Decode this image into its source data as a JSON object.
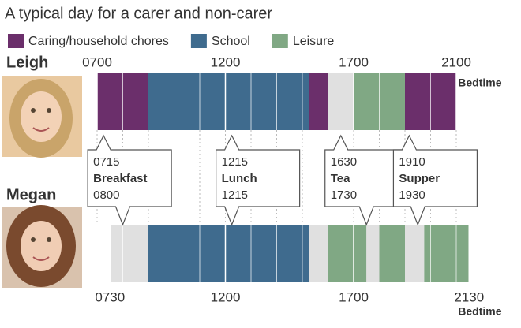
{
  "chart_data": {
    "type": "timeline",
    "title": "A typical day for a carer and non-carer",
    "legend": [
      {
        "name": "Caring/household chores",
        "color": "#6b2f6b"
      },
      {
        "name": "School",
        "color": "#3f6b8e"
      },
      {
        "name": "Leisure",
        "color": "#80a884"
      }
    ],
    "other_color": "#e0e0e0",
    "xlim": [
      7,
      21.5
    ],
    "rows": [
      {
        "name": "Leigh",
        "annotation": "Bedtime",
        "xticks": [
          {
            "value": 7,
            "label": "0700"
          },
          {
            "value": 12,
            "label": "1200"
          },
          {
            "value": 17,
            "label": "1700"
          },
          {
            "value": 21,
            "label": "2100"
          }
        ],
        "segments": [
          {
            "category": 0,
            "start": 7,
            "end": 9
          },
          {
            "category": 1,
            "start": 9,
            "end": 15.25
          },
          {
            "category": 0,
            "start": 15.25,
            "end": 16
          },
          {
            "category": null,
            "start": 16,
            "end": 17
          },
          {
            "category": 2,
            "start": 17,
            "end": 19
          },
          {
            "category": 0,
            "start": 19,
            "end": 21
          }
        ]
      },
      {
        "name": "Megan",
        "annotation": "Bedtime",
        "xticks": [
          {
            "value": 7.5,
            "label": "0730"
          },
          {
            "value": 12,
            "label": "1200"
          },
          {
            "value": 17,
            "label": "1700"
          },
          {
            "value": 21.5,
            "label": "2130"
          }
        ],
        "segments": [
          {
            "category": null,
            "start": 7.5,
            "end": 9
          },
          {
            "category": 1,
            "start": 9,
            "end": 15.25
          },
          {
            "category": null,
            "start": 15.25,
            "end": 16
          },
          {
            "category": 2,
            "start": 16,
            "end": 17.5
          },
          {
            "category": null,
            "start": 17.5,
            "end": 18
          },
          {
            "category": 2,
            "start": 18,
            "end": 19
          },
          {
            "category": null,
            "start": 19,
            "end": 19.75
          },
          {
            "category": 2,
            "start": 19.75,
            "end": 21.5
          }
        ]
      }
    ],
    "callouts": [
      {
        "label": "Breakfast",
        "leigh": {
          "value": 7.25,
          "label": "0715"
        },
        "megan": {
          "value": 8,
          "label": "0800"
        }
      },
      {
        "label": "Lunch",
        "leigh": {
          "value": 12.25,
          "label": "1215"
        },
        "megan": {
          "value": 12.25,
          "label": "1215"
        }
      },
      {
        "label": "Tea",
        "leigh": {
          "value": 16.5,
          "label": "1630"
        },
        "megan": {
          "value": 17.5,
          "label": "1730"
        }
      },
      {
        "label": "Supper",
        "leigh": {
          "value": 19.1667,
          "label": "1910"
        },
        "megan": {
          "value": 19.5,
          "label": "1930"
        }
      }
    ]
  }
}
